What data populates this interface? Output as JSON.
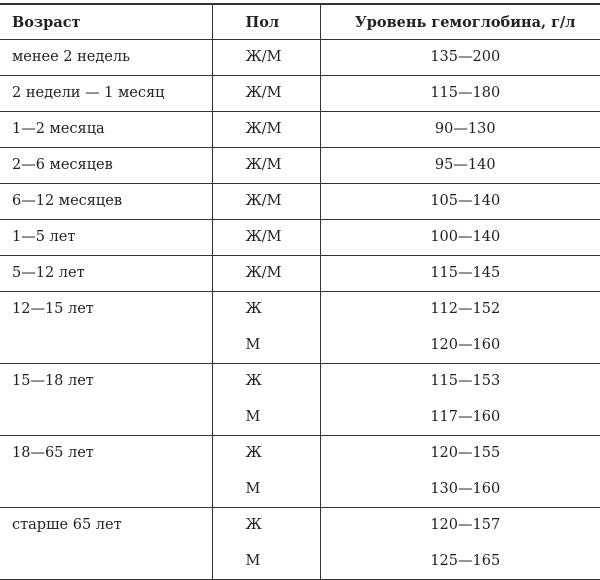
{
  "header": {
    "age": "Возраст",
    "sex": "Пол",
    "level": "Уровень гемоглобина, г/л"
  },
  "rows": [
    {
      "age": "менее 2 недель",
      "entries": [
        {
          "sex": "Ж/М",
          "range": "135—200"
        }
      ]
    },
    {
      "age": "2 недели — 1 месяц",
      "entries": [
        {
          "sex": "Ж/М",
          "range": "115—180"
        }
      ]
    },
    {
      "age": "1—2 месяца",
      "entries": [
        {
          "sex": "Ж/М",
          "range": "90—130"
        }
      ]
    },
    {
      "age": "2—6 месяцев",
      "entries": [
        {
          "sex": "Ж/М",
          "range": "95—140"
        }
      ]
    },
    {
      "age": "6—12 месяцев",
      "entries": [
        {
          "sex": "Ж/М",
          "range": "105—140"
        }
      ]
    },
    {
      "age": "1—5 лет",
      "entries": [
        {
          "sex": "Ж/М",
          "range": "100—140"
        }
      ]
    },
    {
      "age": "5—12 лет",
      "entries": [
        {
          "sex": "Ж/М",
          "range": "115—145"
        }
      ]
    },
    {
      "age": "12—15 лет",
      "entries": [
        {
          "sex": "Ж",
          "range": "112—152"
        },
        {
          "sex": "М",
          "range": "120—160"
        }
      ]
    },
    {
      "age": "15—18 лет",
      "entries": [
        {
          "sex": "Ж",
          "range": "115—153"
        },
        {
          "sex": "М",
          "range": "117—160"
        }
      ]
    },
    {
      "age": "18—65 лет",
      "entries": [
        {
          "sex": "Ж",
          "range": "120—155"
        },
        {
          "sex": "М",
          "range": "130—160"
        }
      ]
    },
    {
      "age": "старше 65 лет",
      "entries": [
        {
          "sex": "Ж",
          "range": "120—157"
        },
        {
          "sex": "М",
          "range": "125—165"
        }
      ]
    }
  ]
}
